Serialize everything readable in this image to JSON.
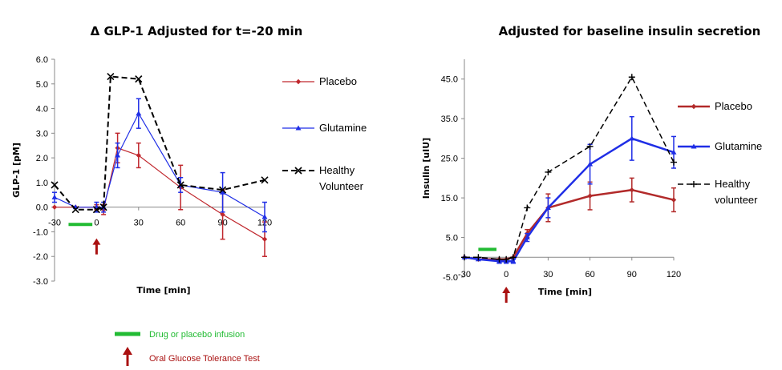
{
  "chart_data": [
    {
      "type": "line",
      "title": "Δ GLP-1 Adjusted for  t=-20 min",
      "xlabel": "Time [min]",
      "ylabel": "GLP-1 [pM]",
      "xlim": [
        -30,
        120
      ],
      "ylim": [
        -3.0,
        6.0
      ],
      "xticks": [
        -30,
        0,
        30,
        60,
        90,
        120
      ],
      "xtick_labels": [
        "-30",
        "0",
        "30",
        "60",
        "90",
        "120"
      ],
      "yticks": [
        -3.0,
        -2.0,
        -1.0,
        0.0,
        1.0,
        2.0,
        3.0,
        4.0,
        5.0,
        6.0
      ],
      "ytick_labels": [
        "-3.0",
        "-2.0",
        "-1.0",
        "0.0",
        "1.0",
        "2.0",
        "3.0",
        "4.0",
        "5.0",
        "6.0"
      ],
      "legend_position": "right",
      "series": [
        {
          "name": "Placebo",
          "color": "#c0272d",
          "marker": "diamond",
          "dash": "solid",
          "width": 1.2,
          "x": [
            -30,
            -15,
            0,
            5,
            15,
            30,
            60,
            90,
            120
          ],
          "y": [
            0.0,
            0.0,
            0.0,
            -0.1,
            2.4,
            2.1,
            0.8,
            -0.3,
            -1.3
          ],
          "err": [
            0,
            0,
            0.1,
            0.2,
            0.6,
            0.5,
            0.9,
            1.0,
            0.7
          ]
        },
        {
          "name": "Glutamine",
          "color": "#1f2ee6",
          "marker": "triangle",
          "dash": "solid",
          "width": 1.2,
          "x": [
            -30,
            -15,
            0,
            5,
            15,
            30,
            60,
            90,
            120
          ],
          "y": [
            0.4,
            0.0,
            0.0,
            0.0,
            2.1,
            3.8,
            0.9,
            0.6,
            -0.4
          ],
          "err": [
            0.2,
            0,
            0.2,
            0.2,
            0.5,
            0.6,
            0.3,
            0.8,
            0.6
          ]
        },
        {
          "name": "Healthy",
          "name_line2": "Volunteer",
          "color": "#000000",
          "marker": "x",
          "dash": "dashed",
          "width": 2,
          "x": [
            -30,
            -15,
            0,
            5,
            10,
            30,
            60,
            90,
            120
          ],
          "y": [
            0.9,
            -0.1,
            -0.1,
            0.0,
            5.3,
            5.2,
            0.9,
            0.7,
            1.1
          ],
          "err": []
        }
      ],
      "annotations": {
        "infusion_x": [
          -20,
          -3
        ],
        "infusion_y": -0.7,
        "ogtt_x": 0
      }
    },
    {
      "type": "line",
      "title": "Adjusted for baseline insulin secretion",
      "xlabel": "Time [min]",
      "ylabel": "Insulin  [uIU]",
      "xlim": [
        -30,
        120
      ],
      "ylim": [
        -5.0,
        50.0
      ],
      "xticks": [
        -30,
        0,
        30,
        60,
        90,
        120
      ],
      "xtick_labels": [
        "-30",
        "0",
        "30",
        "60",
        "90",
        "120"
      ],
      "yticks": [
        -5.0,
        5.0,
        15.0,
        25.0,
        35.0,
        45.0
      ],
      "ytick_labels": [
        "-5.0",
        "5.0",
        "15.0",
        "25.0",
        "35.0",
        "45.0"
      ],
      "legend_position": "right",
      "series": [
        {
          "name": "Placebo",
          "color": "#b22a2a",
          "marker": "diamond",
          "dash": "solid",
          "width": 2.5,
          "x": [
            -30,
            -20,
            -5,
            0,
            5,
            15,
            30,
            60,
            90,
            120
          ],
          "y": [
            0.0,
            -0.5,
            -0.5,
            -0.5,
            0.0,
            6.0,
            12.5,
            15.5,
            17.0,
            14.5
          ],
          "err": [
            0,
            0,
            0,
            0,
            0,
            1.0,
            3.5,
            3.5,
            3.0,
            3.0
          ]
        },
        {
          "name": "Glutamine",
          "color": "#1f2ee6",
          "marker": "triangle",
          "dash": "solid",
          "width": 2.5,
          "x": [
            -30,
            -20,
            -5,
            0,
            5,
            15,
            30,
            60,
            90,
            120
          ],
          "y": [
            0.0,
            -0.5,
            -1.0,
            -1.0,
            -1.0,
            5.0,
            12.5,
            23.5,
            30.0,
            26.5
          ],
          "err": [
            0,
            0,
            0.5,
            0.5,
            0.5,
            1.0,
            2.5,
            5.0,
            5.5,
            4.0
          ]
        },
        {
          "name": "Healthy",
          "name_line2": "volunteer",
          "color": "#000000",
          "marker": "plus",
          "dash": "dashed",
          "width": 1.5,
          "x": [
            -30,
            -20,
            -5,
            0,
            5,
            15,
            30,
            60,
            90,
            120
          ],
          "y": [
            0.0,
            0.0,
            -0.5,
            -0.5,
            0.0,
            12.5,
            21.5,
            28.0,
            45.5,
            24.0
          ],
          "err": []
        }
      ],
      "annotations": {
        "infusion_x": [
          -20,
          -7
        ],
        "infusion_y": 2.0,
        "ogtt_x": 0
      }
    }
  ],
  "footnotes": {
    "infusion_label": "Drug or placebo infusion",
    "infusion_color": "#22bb33",
    "ogtt_label": "Oral Glucose Tolerance Test",
    "ogtt_color": "#aa1111"
  }
}
